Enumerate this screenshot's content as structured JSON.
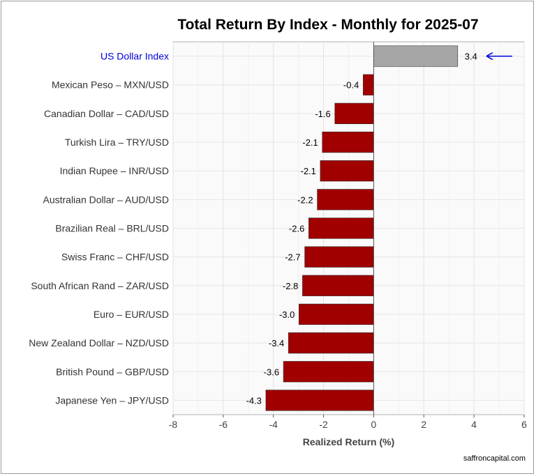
{
  "chart_data": {
    "type": "bar",
    "orientation": "horizontal",
    "title": "Total Return By Index - Monthly for 2025-07",
    "xlabel": "Realized Return (%)",
    "ylabel": "",
    "xlim": [
      -8,
      6
    ],
    "xticks": [
      -8,
      -6,
      -4,
      -2,
      0,
      2,
      4,
      6
    ],
    "grid": true,
    "categories": [
      "US Dollar Index",
      "Mexican Peso – MXN/USD",
      "Canadian Dollar – CAD/USD",
      "Turkish Lira – TRY/USD",
      "Indian Rupee – INR/USD",
      "Australian Dollar – AUD/USD",
      "Brazilian Real – BRL/USD",
      "Swiss Franc – CHF/USD",
      "South African Rand – ZAR/USD",
      "Euro – EUR/USD",
      "New Zealand Dollar – NZD/USD",
      "British Pound – GBP/USD",
      "Japanese Yen – JPY/USD"
    ],
    "values": [
      3.35,
      -0.42,
      -1.55,
      -2.05,
      -2.13,
      -2.25,
      -2.59,
      -2.75,
      -2.84,
      -2.98,
      -3.4,
      -3.6,
      -4.3
    ],
    "value_labels": [
      "3.4",
      "-0.4",
      "-1.6",
      "-2.1",
      "-2.1",
      "-2.2",
      "-2.6",
      "-2.7",
      "-2.8",
      "-3.0",
      "-3.4",
      "-3.6",
      "-4.3"
    ],
    "highlight_index": 0,
    "colors": {
      "highlight_bar": "#a6a6a6",
      "highlight_label": "#0000dd",
      "negative_bar": "#a00000",
      "arrow": "#0000dd",
      "panel_bg": "#fafafa",
      "grid": "#e6e6e6"
    }
  },
  "footer": {
    "source": "saffroncapital.com"
  }
}
